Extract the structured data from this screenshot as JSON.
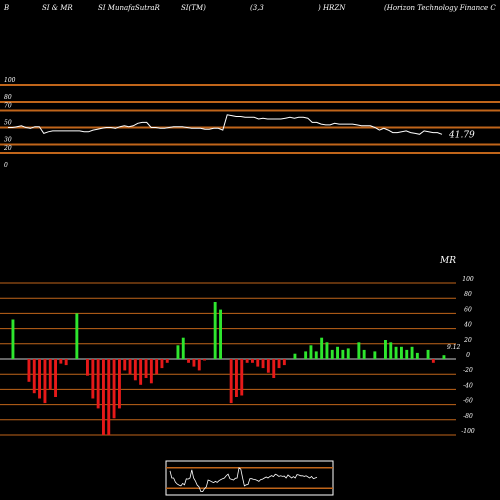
{
  "header": {
    "items": [
      "B",
      "SI & MR",
      "SI MunafaSutraR",
      "SI(TM)",
      "(3,3",
      ") HRZN",
      "(Horizon Technology Finance C"
    ]
  },
  "colors": {
    "background": "#000000",
    "band_line": "#c0651a",
    "rsi_line": "#ffffff",
    "positive_bar": "#2ee62e",
    "negative_bar": "#e61919",
    "zero_line": "#888888",
    "mini_border": "#ffffff",
    "mini_band": "#c0651a",
    "text": "#ffffff"
  },
  "chart_data": [
    {
      "type": "line",
      "name": "rsi-panel",
      "ylim": [
        0,
        100
      ],
      "y_ticks": [
        "100",
        "80",
        "70",
        "50",
        "30",
        "20",
        "0"
      ],
      "band_levels": [
        100,
        80,
        70,
        50,
        30,
        20
      ],
      "last_value_label": "41.79",
      "values": [
        50,
        50,
        51,
        52,
        50,
        49,
        51,
        51,
        43,
        45,
        46,
        46,
        46,
        46,
        46,
        46,
        46,
        45,
        45,
        47,
        48,
        49,
        50,
        50,
        49,
        51,
        52,
        51,
        52,
        55,
        56,
        56,
        50,
        50,
        49,
        49,
        50,
        51,
        51,
        51,
        50,
        49,
        49,
        49,
        48,
        48,
        49,
        49,
        47,
        65,
        64,
        63,
        63,
        62,
        62,
        62,
        60,
        61,
        60,
        60,
        60,
        60,
        61,
        62,
        61,
        62,
        62,
        61,
        56,
        56,
        54,
        53,
        53,
        55,
        54,
        54,
        54,
        54,
        53,
        52,
        52,
        52,
        50,
        47,
        49,
        47,
        44,
        44,
        45,
        46,
        44,
        43,
        42,
        46,
        45,
        44,
        44,
        42
      ]
    },
    {
      "type": "bar",
      "name": "mrsi-panel",
      "title": "MR",
      "ylim": [
        -100,
        100
      ],
      "y_ticks": [
        "100",
        "80",
        "60",
        "40",
        "20",
        "0",
        "-20",
        "-40",
        "-60",
        "-80",
        "-100"
      ],
      "last_value_label": "9.12",
      "values": [
        52,
        0,
        0,
        -30,
        -45,
        -52,
        -58,
        -40,
        -50,
        -6,
        -8,
        0,
        60,
        0,
        -22,
        -52,
        -65,
        -100,
        -100,
        -78,
        -65,
        -15,
        -20,
        -28,
        -34,
        -25,
        -32,
        -20,
        -12,
        -5,
        0,
        18,
        28,
        -5,
        -10,
        -15,
        -2,
        0,
        75,
        65,
        0,
        -58,
        -50,
        -48,
        -5,
        -5,
        -10,
        -12,
        -18,
        -25,
        -12,
        -8,
        0,
        7,
        0,
        10,
        18,
        10,
        28,
        22,
        12,
        16,
        12,
        14,
        0,
        22,
        12,
        0,
        10,
        0,
        25,
        22,
        16,
        16,
        12,
        16,
        8,
        0,
        12,
        -5,
        0,
        5
      ]
    }
  ]
}
